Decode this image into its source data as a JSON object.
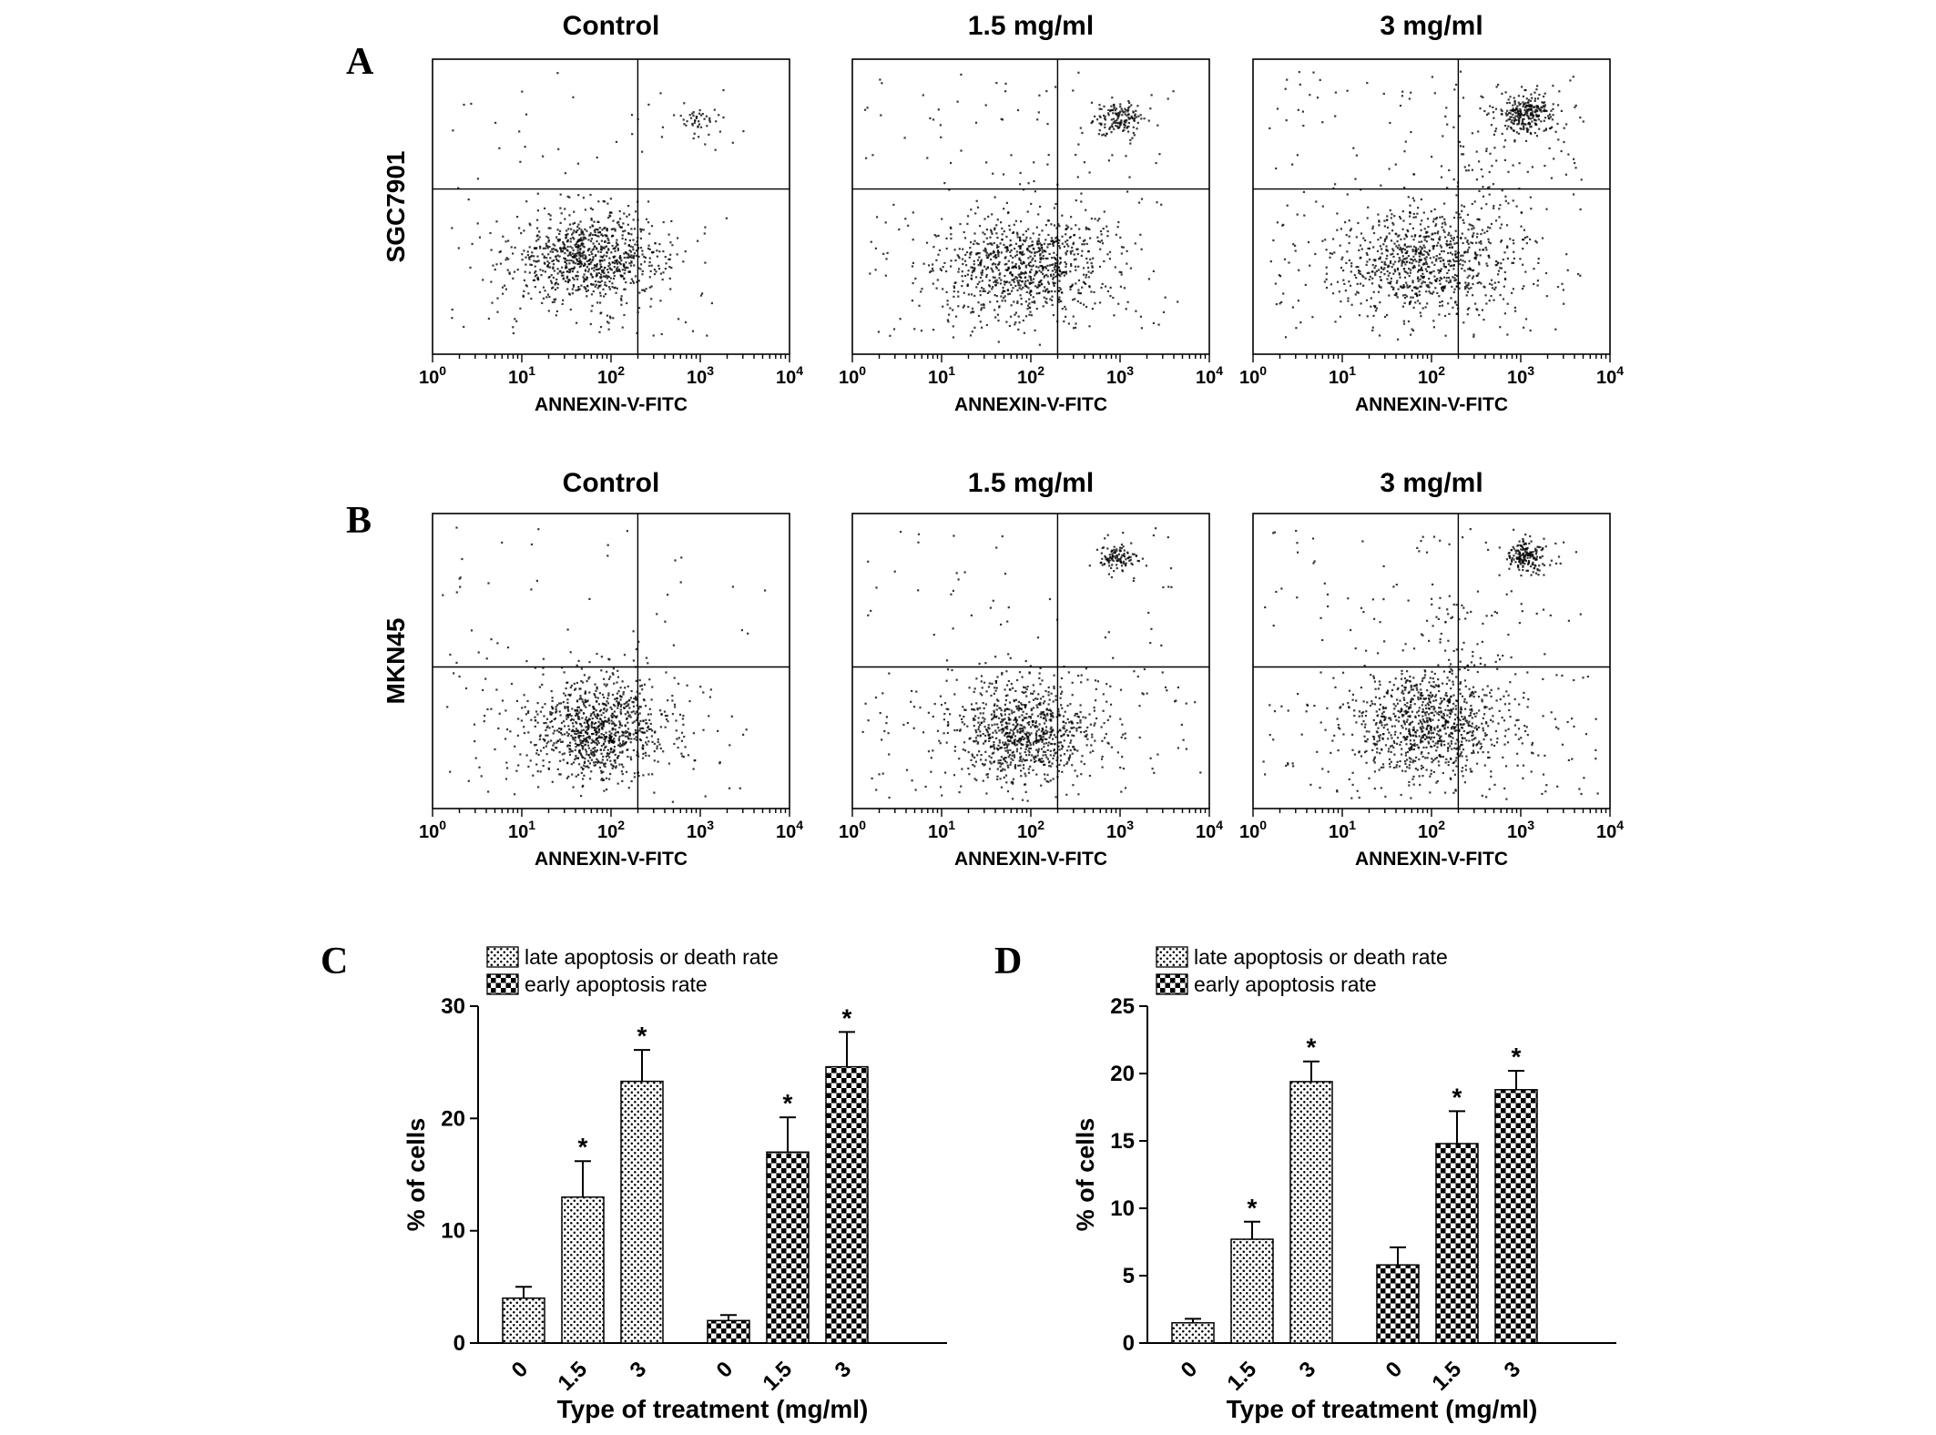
{
  "colors": {
    "foreground": "#000000",
    "background": "#ffffff"
  },
  "panels": {
    "A": {
      "letter": "A"
    },
    "B": {
      "letter": "B"
    },
    "C": {
      "letter": "C"
    },
    "D": {
      "letter": "D"
    }
  },
  "chart_data": [
    {
      "type": "scatter",
      "panel": "A",
      "cell_line": "SGC7901",
      "x_label": "ANNEXIN-V-FITC",
      "x_scale": "log10",
      "x_range_decades": [
        0,
        4
      ],
      "x_tick_base": "10",
      "x_tick_exponents": [
        "0",
        "1",
        "2",
        "3",
        "4"
      ],
      "description": "Annexin V-FITC flow cytometry dot plots of SGC7901 cells with quadrant gates; main viable population in lower-left, apoptotic population appears upper-right with increasing dose",
      "plots": [
        {
          "title": "Control",
          "quad_x_decade": 2.3,
          "quad_y_frac": 0.56,
          "clusters": [
            {
              "kind": "gauss",
              "cx": 1.75,
              "cy": 0.33,
              "sx": 0.42,
              "sy": 0.075,
              "n": 850
            },
            {
              "kind": "gauss",
              "cx": 3.0,
              "cy": 0.8,
              "sx": 0.1,
              "sy": 0.025,
              "n": 40
            },
            {
              "kind": "uniform",
              "x0": 0.1,
              "x1": 3.5,
              "y0": 0.46,
              "y1": 0.96,
              "n": 50
            },
            {
              "kind": "uniform",
              "x0": 0.1,
              "x1": 3.2,
              "y0": 0.06,
              "y1": 0.45,
              "n": 60
            }
          ]
        },
        {
          "title": "1.5 mg/ml",
          "quad_x_decade": 2.3,
          "quad_y_frac": 0.56,
          "clusters": [
            {
              "kind": "gauss",
              "cx": 1.9,
              "cy": 0.3,
              "sx": 0.48,
              "sy": 0.085,
              "n": 850
            },
            {
              "kind": "gauss",
              "cx": 3.0,
              "cy": 0.8,
              "sx": 0.14,
              "sy": 0.03,
              "n": 140
            },
            {
              "kind": "uniform",
              "x0": 0.1,
              "x1": 3.6,
              "y0": 0.46,
              "y1": 0.96,
              "n": 90
            },
            {
              "kind": "uniform",
              "x0": 0.1,
              "x1": 3.5,
              "y0": 0.06,
              "y1": 0.45,
              "n": 80
            }
          ]
        },
        {
          "title": "3 mg/ml",
          "quad_x_decade": 2.3,
          "quad_y_frac": 0.56,
          "clusters": [
            {
              "kind": "gauss",
              "cx": 1.95,
              "cy": 0.31,
              "sx": 0.5,
              "sy": 0.09,
              "n": 800
            },
            {
              "kind": "gauss",
              "cx": 3.05,
              "cy": 0.82,
              "sx": 0.16,
              "sy": 0.035,
              "n": 260
            },
            {
              "kind": "gauss",
              "cx": 2.6,
              "cy": 0.6,
              "sx": 0.3,
              "sy": 0.12,
              "n": 60
            },
            {
              "kind": "uniform",
              "x0": 0.1,
              "x1": 3.7,
              "y0": 0.46,
              "y1": 0.96,
              "n": 120
            },
            {
              "kind": "uniform",
              "x0": 0.1,
              "x1": 3.6,
              "y0": 0.06,
              "y1": 0.45,
              "n": 100
            }
          ]
        }
      ]
    },
    {
      "type": "scatter",
      "panel": "B",
      "cell_line": "MKN45",
      "x_label": "ANNEXIN-V-FITC",
      "x_scale": "log10",
      "x_range_decades": [
        0,
        4
      ],
      "x_tick_base": "10",
      "x_tick_exponents": [
        "0",
        "1",
        "2",
        "3",
        "4"
      ],
      "description": "Annexin V-FITC flow cytometry dot plots of MKN45 cells with quadrant gates; apoptotic upper-right population grows with dose",
      "plots": [
        {
          "title": "Control",
          "quad_x_decade": 2.3,
          "quad_y_frac": 0.48,
          "clusters": [
            {
              "kind": "gauss",
              "cx": 1.85,
              "cy": 0.27,
              "sx": 0.38,
              "sy": 0.085,
              "n": 900
            },
            {
              "kind": "uniform",
              "x0": 0.1,
              "x1": 3.8,
              "y0": 0.5,
              "y1": 0.96,
              "n": 40
            },
            {
              "kind": "uniform",
              "x0": 0.1,
              "x1": 3.6,
              "y0": 0.04,
              "y1": 0.5,
              "n": 100
            }
          ]
        },
        {
          "title": "1.5 mg/ml",
          "quad_x_decade": 2.3,
          "quad_y_frac": 0.48,
          "clusters": [
            {
              "kind": "gauss",
              "cx": 1.9,
              "cy": 0.26,
              "sx": 0.42,
              "sy": 0.09,
              "n": 850
            },
            {
              "kind": "gauss",
              "cx": 2.95,
              "cy": 0.85,
              "sx": 0.11,
              "sy": 0.025,
              "n": 110
            },
            {
              "kind": "uniform",
              "x0": 0.1,
              "x1": 3.9,
              "y0": 0.04,
              "y1": 0.48,
              "n": 120
            },
            {
              "kind": "uniform",
              "x0": 0.1,
              "x1": 3.7,
              "y0": 0.5,
              "y1": 0.96,
              "n": 50
            }
          ]
        },
        {
          "title": "3 mg/ml",
          "quad_x_decade": 2.3,
          "quad_y_frac": 0.48,
          "clusters": [
            {
              "kind": "gauss",
              "cx": 1.95,
              "cy": 0.28,
              "sx": 0.45,
              "sy": 0.095,
              "n": 850
            },
            {
              "kind": "gauss",
              "cx": 3.05,
              "cy": 0.86,
              "sx": 0.12,
              "sy": 0.028,
              "n": 170
            },
            {
              "kind": "gauss",
              "cx": 2.2,
              "cy": 0.55,
              "sx": 0.35,
              "sy": 0.15,
              "n": 80
            },
            {
              "kind": "uniform",
              "x0": 0.1,
              "x1": 3.9,
              "y0": 0.04,
              "y1": 0.48,
              "n": 130
            },
            {
              "kind": "uniform",
              "x0": 0.1,
              "x1": 3.7,
              "y0": 0.5,
              "y1": 0.96,
              "n": 70
            }
          ]
        }
      ]
    },
    {
      "type": "bar",
      "panel": "C",
      "cell_line": "SGC7901",
      "title": "",
      "xlabel": "Type of treatment (mg/ml)",
      "ylabel": "% of cells",
      "ylim": [
        0,
        30
      ],
      "yticks": [
        0,
        10,
        20,
        30
      ],
      "categories": [
        "0",
        "1.5",
        "3",
        "0",
        "1.5",
        "3"
      ],
      "significance_marker": "*",
      "legend_position": "top",
      "series": [
        {
          "name": "late apoptosis or death rate",
          "treatments": [
            "0",
            "1.5",
            "3"
          ],
          "values": [
            4,
            13,
            23.3
          ],
          "errors": [
            1,
            3.2,
            2.8
          ],
          "significant": [
            false,
            true,
            true
          ]
        },
        {
          "name": "early apoptosis rate",
          "treatments": [
            "0",
            "1.5",
            "3"
          ],
          "values": [
            2,
            17,
            24.6
          ],
          "errors": [
            0.5,
            3.1,
            3.1
          ],
          "significant": [
            false,
            true,
            true
          ]
        }
      ]
    },
    {
      "type": "bar",
      "panel": "D",
      "cell_line": "MKN45",
      "title": "",
      "xlabel": "Type of treatment (mg/ml)",
      "ylabel": "% of cells",
      "ylim": [
        0,
        25
      ],
      "yticks": [
        0,
        5,
        10,
        15,
        20,
        25
      ],
      "categories": [
        "0",
        "1.5",
        "3",
        "0",
        "1.5",
        "3"
      ],
      "significance_marker": "*",
      "legend_position": "top",
      "series": [
        {
          "name": "late apoptosis or death rate",
          "treatments": [
            "0",
            "1.5",
            "3"
          ],
          "values": [
            1.5,
            7.7,
            19.4
          ],
          "errors": [
            0.3,
            1.3,
            1.5
          ],
          "significant": [
            false,
            true,
            true
          ]
        },
        {
          "name": "early apoptosis rate",
          "treatments": [
            "0",
            "1.5",
            "3"
          ],
          "values": [
            5.8,
            14.8,
            18.8
          ],
          "errors": [
            1.3,
            2.4,
            1.4
          ],
          "significant": [
            false,
            true,
            true
          ]
        }
      ]
    }
  ]
}
